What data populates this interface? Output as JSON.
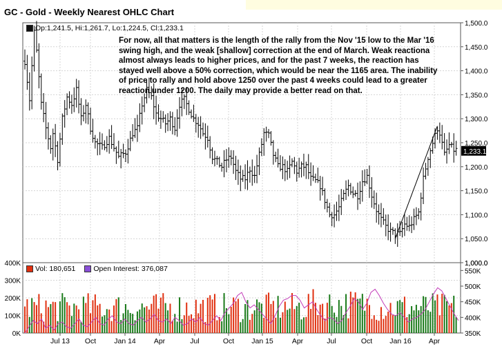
{
  "chart_title": "GC - Gold - Weekly Nearest OHLC Chart",
  "ohlc_legend": "Op:1,241.5, Hi:1,261.7, Lo:1,224.5, Cl:1,233.1",
  "commentary": "For now, all that matters is the length of the rally from the Nov '15 low to the Mar '16 swing high, and the weak [shallow] correction at the end of March.  Weak reactiona almost always leads to higher prices, and for the past 7 weeks, the reaction has stayed well above a 50% correction, which would be near the 1165 area.  The inability of price to rally and hold above 1250 over the past 4 weeks could lead to a greater reaction under 1200.  The daily may provide a better read on that.",
  "last_price_label": "1,233.1",
  "volume_legend": {
    "vol": "Vol: 180,651",
    "oi": "Open Interest: 376,087"
  },
  "colors": {
    "up_bar": "#1a7a1a",
    "down_bar": "#e03010",
    "oi_line": "#c23ab8",
    "vol_swatch": "#e03010",
    "oi_swatch": "#8a4fd8",
    "title_band": "#fffde0"
  },
  "chart_data": [
    {
      "type": "ohlc",
      "x_tick_labels": [
        "Jul 13",
        "Oct",
        "Jan 14",
        "Apr",
        "Jul",
        "Oct",
        "Jan 15",
        "Apr",
        "Jul",
        "Oct",
        "Jan 16",
        "Apr"
      ],
      "y_tick_labels": [
        "1,500.0",
        "1,450.0",
        "1,400.0",
        "1,350.0",
        "1,300.0",
        "1,250.0",
        "1,200.0",
        "1,150.0",
        "1,100.0",
        "1,050.0",
        "1,000.0"
      ],
      "ylim": [
        1000,
        1500
      ],
      "close_path": [
        [
          0,
          1420
        ],
        [
          2,
          1340
        ],
        [
          4,
          1480
        ],
        [
          5,
          1440
        ],
        [
          7,
          1330
        ],
        [
          9,
          1280
        ],
        [
          11,
          1240
        ],
        [
          12,
          1270
        ],
        [
          14,
          1215
        ],
        [
          16,
          1300
        ],
        [
          18,
          1345
        ],
        [
          20,
          1330
        ],
        [
          22,
          1360
        ],
        [
          24,
          1300
        ],
        [
          26,
          1330
        ],
        [
          28,
          1280
        ],
        [
          30,
          1250
        ],
        [
          33,
          1240
        ],
        [
          36,
          1260
        ],
        [
          40,
          1220
        ],
        [
          43,
          1230
        ],
        [
          46,
          1270
        ],
        [
          48,
          1280
        ],
        [
          50,
          1330
        ],
        [
          52,
          1360
        ],
        [
          54,
          1345
        ],
        [
          56,
          1310
        ],
        [
          58,
          1300
        ],
        [
          60,
          1290
        ],
        [
          62,
          1300
        ],
        [
          64,
          1280
        ],
        [
          66,
          1330
        ],
        [
          68,
          1340
        ],
        [
          70,
          1320
        ],
        [
          72,
          1300
        ],
        [
          74,
          1290
        ],
        [
          76,
          1270
        ],
        [
          78,
          1260
        ],
        [
          80,
          1220
        ],
        [
          82,
          1210
        ],
        [
          84,
          1200
        ],
        [
          86,
          1215
        ],
        [
          88,
          1220
        ],
        [
          90,
          1190
        ],
        [
          92,
          1175
        ],
        [
          94,
          1175
        ],
        [
          96,
          1195
        ],
        [
          98,
          1180
        ],
        [
          100,
          1225
        ],
        [
          102,
          1270
        ],
        [
          104,
          1265
        ],
        [
          106,
          1225
        ],
        [
          108,
          1200
        ],
        [
          110,
          1200
        ],
        [
          112,
          1190
        ],
        [
          114,
          1210
        ],
        [
          116,
          1190
        ],
        [
          118,
          1200
        ],
        [
          120,
          1200
        ],
        [
          122,
          1175
        ],
        [
          124,
          1170
        ],
        [
          126,
          1160
        ],
        [
          128,
          1130
        ],
        [
          130,
          1100
        ],
        [
          132,
          1100
        ],
        [
          134,
          1115
        ],
        [
          136,
          1140
        ],
        [
          138,
          1160
        ],
        [
          140,
          1145
        ],
        [
          142,
          1140
        ],
        [
          144,
          1170
        ],
        [
          146,
          1180
        ],
        [
          148,
          1140
        ],
        [
          150,
          1110
        ],
        [
          152,
          1090
        ],
        [
          154,
          1075
        ],
        [
          156,
          1065
        ],
        [
          158,
          1060
        ],
        [
          160,
          1060
        ],
        [
          162,
          1080
        ],
        [
          164,
          1075
        ],
        [
          166,
          1090
        ],
        [
          168,
          1105
        ],
        [
          170,
          1175
        ],
        [
          172,
          1220
        ],
        [
          174,
          1250
        ],
        [
          176,
          1280
        ],
        [
          177,
          1270
        ],
        [
          179,
          1225
        ],
        [
          181,
          1245
        ],
        [
          183,
          1235
        ]
      ],
      "annotation_line": [
        [
          158,
          1050
        ],
        [
          176,
          1285
        ]
      ],
      "last_price": 1233.1
    },
    {
      "type": "bar",
      "series": [
        {
          "name": "Vol",
          "kind": "bar"
        },
        {
          "name": "Open Interest",
          "kind": "line",
          "values": [
            350,
            370,
            390,
            380,
            395,
            365,
            375,
            360,
            380,
            385,
            370,
            365,
            380,
            395,
            375,
            370,
            385,
            400,
            380,
            375,
            395,
            405,
            385,
            380,
            395,
            380,
            375,
            390,
            400,
            385,
            395,
            410,
            390,
            385,
            395,
            380,
            400,
            390,
            375,
            380,
            395,
            385,
            400,
            380,
            375,
            390,
            405,
            390,
            415,
            430,
            445,
            470,
            480,
            450,
            430,
            440,
            425,
            410,
            395,
            380,
            405,
            435,
            455,
            460,
            470,
            470,
            455,
            430,
            440,
            450,
            425,
            405,
            390,
            400,
            395,
            380,
            390,
            415,
            435,
            460,
            450,
            425,
            445,
            480,
            490,
            470,
            445,
            425,
            410,
            405,
            415,
            400,
            385,
            395,
            400,
            410,
            425,
            450,
            475,
            495,
            485,
            460,
            435,
            410,
            390
          ]
        }
      ],
      "y_left_tick_labels": [
        "400K",
        "300K",
        "200K",
        "100K",
        "0K"
      ],
      "y_left_lim": [
        0,
        400
      ],
      "y_right_tick_labels": [
        "1,000.0",
        "550K",
        "500K",
        "450K",
        "400K",
        "350K"
      ],
      "y_right_lim": [
        350,
        575
      ]
    }
  ]
}
